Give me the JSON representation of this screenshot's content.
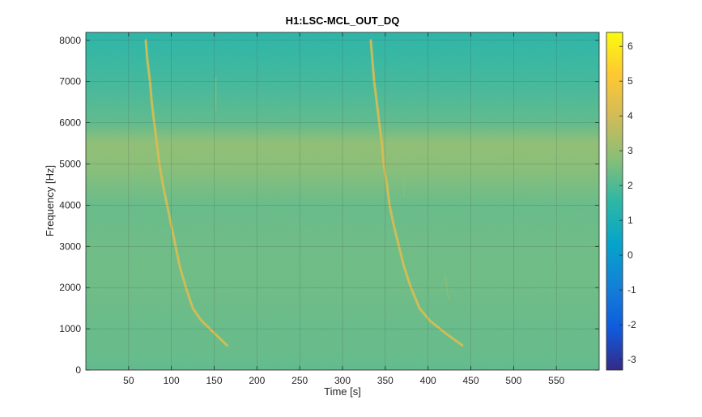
{
  "chart_data": {
    "type": "heatmap",
    "title": "H1:LSC-MCL_OUT_DQ",
    "xlabel": "Time [s]",
    "ylabel": "Frequency [Hz]",
    "xlim": [
      0,
      600
    ],
    "ylim": [
      0,
      8192
    ],
    "x_ticks": [
      50,
      100,
      150,
      200,
      250,
      300,
      350,
      400,
      450,
      500,
      550
    ],
    "y_ticks": [
      0,
      1000,
      2000,
      3000,
      4000,
      5000,
      6000,
      7000,
      8000
    ],
    "grid": true,
    "colormap": "parula",
    "colorbar": {
      "range": [
        -3.3,
        6.4
      ],
      "ticks": [
        -3,
        -2,
        -1,
        0,
        1,
        2,
        3,
        4,
        5,
        6
      ]
    },
    "background_level_by_frequency": [
      {
        "freq": 0,
        "value": 2.2
      },
      {
        "freq": 500,
        "value": 2.3
      },
      {
        "freq": 1000,
        "value": 2.3
      },
      {
        "freq": 2000,
        "value": 2.4
      },
      {
        "freq": 3000,
        "value": 2.4
      },
      {
        "freq": 4000,
        "value": 2.3
      },
      {
        "freq": 5000,
        "value": 2.8
      },
      {
        "freq": 5500,
        "value": 2.9
      },
      {
        "freq": 6000,
        "value": 2.2
      },
      {
        "freq": 7000,
        "value": 1.8
      },
      {
        "freq": 8000,
        "value": 1.5
      },
      {
        "freq": 8192,
        "value": 1.4
      }
    ],
    "chirp_tracks": [
      {
        "time_hz": [
          [
            70,
            8000
          ],
          [
            72,
            7500
          ],
          [
            75,
            7000
          ],
          [
            77,
            6500
          ],
          [
            80,
            6000
          ],
          [
            83,
            5500
          ],
          [
            86,
            5000
          ],
          [
            90,
            4500
          ],
          [
            95,
            4000
          ],
          [
            100,
            3500
          ],
          [
            105,
            3000
          ],
          [
            110,
            2500
          ],
          [
            117,
            2000
          ],
          [
            125,
            1500
          ],
          [
            135,
            1200
          ],
          [
            150,
            900
          ],
          [
            165,
            600
          ]
        ],
        "value": 4.2
      },
      {
        "time_hz": [
          [
            333,
            8000
          ],
          [
            335,
            7500
          ],
          [
            337,
            7000
          ],
          [
            340,
            6500
          ],
          [
            343,
            6000
          ],
          [
            346,
            5500
          ],
          [
            348,
            5000
          ],
          [
            352,
            4500
          ],
          [
            355,
            4000
          ],
          [
            360,
            3500
          ],
          [
            366,
            3000
          ],
          [
            372,
            2500
          ],
          [
            380,
            2000
          ],
          [
            390,
            1500
          ],
          [
            402,
            1200
          ],
          [
            420,
            900
          ],
          [
            440,
            600
          ]
        ],
        "value": 4.2
      }
    ],
    "faint_lines": [
      {
        "time_hz": [
          [
            152,
            7100
          ],
          [
            152,
            6300
          ]
        ],
        "value": 3.0
      },
      {
        "time_hz": [
          [
            420,
            2300
          ],
          [
            424,
            1700
          ]
        ],
        "value": 3.0
      },
      {
        "time_hz": [
          [
            370,
            5000
          ],
          [
            372,
            4200
          ]
        ],
        "value": 2.9
      }
    ]
  }
}
